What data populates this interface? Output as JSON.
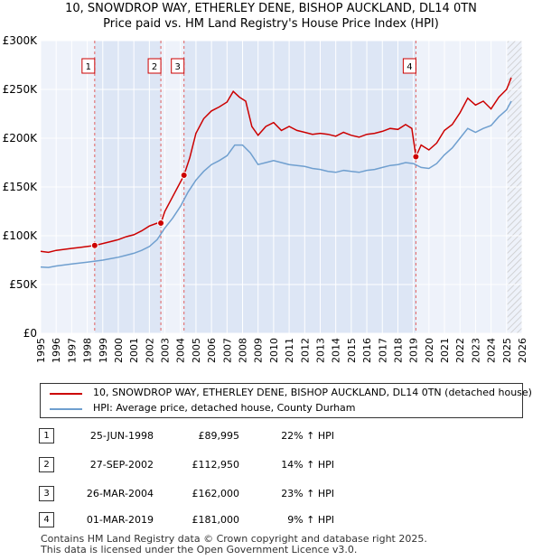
{
  "title_line1": "10, SNOWDROP WAY, ETHERLEY DENE, BISHOP AUCKLAND, DL14 0TN",
  "title_line2": "Price paid vs. HM Land Registry's House Price Index (HPI)",
  "chart_data": {
    "type": "line",
    "xlim": [
      1995,
      2026
    ],
    "ylim": [
      0,
      300000
    ],
    "y_ticks": [
      0,
      50000,
      100000,
      150000,
      200000,
      250000,
      300000
    ],
    "y_tick_labels": [
      "£0",
      "£50K",
      "£100K",
      "£150K",
      "£200K",
      "£250K",
      "£300K"
    ],
    "x_ticks": [
      1995,
      1996,
      1997,
      1998,
      1999,
      2000,
      2001,
      2002,
      2003,
      2004,
      2005,
      2006,
      2007,
      2008,
      2009,
      2010,
      2011,
      2012,
      2013,
      2014,
      2015,
      2016,
      2017,
      2018,
      2019,
      2020,
      2021,
      2022,
      2023,
      2024,
      2025,
      2026
    ],
    "x_tick_labels": [
      "1995",
      "1996",
      "1997",
      "1998",
      "1999",
      "2000",
      "2001",
      "2002",
      "2003",
      "2004",
      "2005",
      "2006",
      "2007",
      "2008",
      "2009",
      "2010",
      "2011",
      "2012",
      "2013",
      "2014",
      "2015",
      "2016",
      "2017",
      "2018",
      "2019",
      "2020",
      "2021",
      "2022",
      "2023",
      "2024",
      "2025",
      "2026"
    ],
    "grid": true,
    "shaded_ranges": [
      [
        1998.48,
        2002.74
      ],
      [
        2004.23,
        2019.16
      ]
    ],
    "forecast_start": 2025.05,
    "series": [
      {
        "name": "10, SNOWDROP WAY, ETHERLEY DENE, BISHOP AUCKLAND, DL14 0TN (detached house)",
        "color": "#cc0000",
        "x": [
          1995.0,
          1995.5,
          1996.0,
          1996.5,
          1997.0,
          1997.5,
          1998.0,
          1998.48,
          1999.0,
          1999.5,
          2000.0,
          2000.5,
          2001.0,
          2001.5,
          2002.0,
          2002.5,
          2002.74,
          2003.0,
          2003.5,
          2004.0,
          2004.23,
          2004.6,
          2005.0,
          2005.5,
          2006.0,
          2006.5,
          2007.0,
          2007.4,
          2007.8,
          2008.2,
          2008.6,
          2009.0,
          2009.5,
          2010.0,
          2010.5,
          2011.0,
          2011.5,
          2012.0,
          2012.5,
          2013.0,
          2013.5,
          2014.0,
          2014.5,
          2015.0,
          2015.5,
          2016.0,
          2016.5,
          2017.0,
          2017.5,
          2018.0,
          2018.5,
          2018.9,
          2019.16,
          2019.5,
          2020.0,
          2020.5,
          2021.0,
          2021.5,
          2022.0,
          2022.5,
          2023.0,
          2023.5,
          2024.0,
          2024.5,
          2025.0,
          2025.3
        ],
        "y": [
          84000,
          83000,
          85000,
          86000,
          87000,
          88000,
          89000,
          89995,
          92000,
          94000,
          96000,
          99000,
          101000,
          105000,
          110000,
          113000,
          112950,
          125000,
          140000,
          155000,
          162000,
          180000,
          205000,
          220000,
          228000,
          232000,
          237000,
          248000,
          242000,
          238000,
          212000,
          203000,
          212000,
          216000,
          208000,
          212000,
          208000,
          206000,
          204000,
          205000,
          204000,
          202000,
          206000,
          203000,
          201000,
          204000,
          205000,
          207000,
          210000,
          209000,
          214000,
          210000,
          181000,
          193000,
          188000,
          195000,
          208000,
          214000,
          226000,
          241000,
          234000,
          238000,
          230000,
          242000,
          250000,
          262000
        ]
      },
      {
        "name": "HPI: Average price, detached house, County Durham",
        "color": "#6f9fcf",
        "x": [
          1995.0,
          1995.5,
          1996.0,
          1996.5,
          1997.0,
          1997.5,
          1998.0,
          1998.5,
          1999.0,
          1999.5,
          2000.0,
          2000.5,
          2001.0,
          2001.5,
          2002.0,
          2002.5,
          2003.0,
          2003.5,
          2004.0,
          2004.5,
          2005.0,
          2005.5,
          2006.0,
          2006.5,
          2007.0,
          2007.5,
          2008.0,
          2008.5,
          2009.0,
          2009.5,
          2010.0,
          2010.5,
          2011.0,
          2011.5,
          2012.0,
          2012.5,
          2013.0,
          2013.5,
          2014.0,
          2014.5,
          2015.0,
          2015.5,
          2016.0,
          2016.5,
          2017.0,
          2017.5,
          2018.0,
          2018.5,
          2019.0,
          2019.5,
          2020.0,
          2020.5,
          2021.0,
          2021.5,
          2022.0,
          2022.5,
          2023.0,
          2023.5,
          2024.0,
          2024.5,
          2025.0,
          2025.3
        ],
        "y": [
          68000,
          67500,
          69000,
          70000,
          71000,
          72000,
          73000,
          74000,
          75000,
          76500,
          78000,
          80000,
          82000,
          85000,
          89000,
          96000,
          108000,
          118000,
          130000,
          145000,
          157000,
          166000,
          173000,
          177000,
          182000,
          193000,
          193000,
          185000,
          173000,
          175000,
          177000,
          175000,
          173000,
          172000,
          171000,
          169000,
          168000,
          166000,
          165000,
          167000,
          166000,
          165000,
          167000,
          168000,
          170000,
          172000,
          173000,
          175000,
          174000,
          170000,
          169000,
          174000,
          183000,
          190000,
          200000,
          210000,
          206000,
          210000,
          213000,
          222000,
          229000,
          238000
        ]
      }
    ],
    "sales": [
      {
        "label": "1",
        "x": 1998.48,
        "price": 89995
      },
      {
        "label": "2",
        "x": 2002.74,
        "price": 112950
      },
      {
        "label": "3",
        "x": 2004.23,
        "price": 162000
      },
      {
        "label": "4",
        "x": 2019.16,
        "price": 181000
      }
    ]
  },
  "legend": {
    "property": "10, SNOWDROP WAY, ETHERLEY DENE, BISHOP AUCKLAND, DL14 0TN (detached house)",
    "hpi": "HPI: Average price, detached house, County Durham"
  },
  "table": [
    {
      "num": "1",
      "date": "25-JUN-1998",
      "price": "£89,995",
      "hpi": "22% ↑ HPI"
    },
    {
      "num": "2",
      "date": "27-SEP-2002",
      "price": "£112,950",
      "hpi": "14% ↑ HPI"
    },
    {
      "num": "3",
      "date": "26-MAR-2004",
      "price": "£162,000",
      "hpi": "23% ↑ HPI"
    },
    {
      "num": "4",
      "date": "01-MAR-2019",
      "price": "£181,000",
      "hpi": "9% ↑ HPI"
    }
  ],
  "footer_line1": "Contains HM Land Registry data © Crown copyright and database right 2025.",
  "footer_line2": "This data is licensed under the Open Government Licence v3.0."
}
